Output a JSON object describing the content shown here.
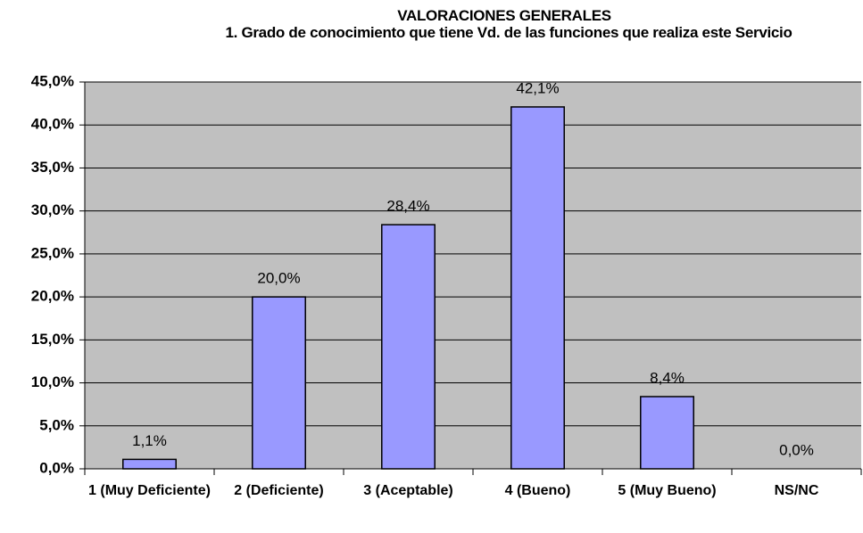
{
  "chart_data": {
    "type": "bar",
    "title": "VALORACIONES GENERALES",
    "subtitle": "1. Grado de conocimiento que tiene Vd. de las funciones que realiza este Servicio",
    "categories": [
      "1 (Muy Deficiente)",
      "2 (Deficiente)",
      "3 (Aceptable)",
      "4 (Bueno)",
      "5 (Muy Bueno)",
      "NS/NC"
    ],
    "values": [
      1.1,
      20.0,
      28.4,
      42.1,
      8.4,
      0.0
    ],
    "value_labels": [
      "1,1%",
      "20,0%",
      "28,4%",
      "42,1%",
      "8,4%",
      "0,0%"
    ],
    "color": "#9999ff",
    "ylim": [
      0,
      45
    ],
    "yticks": [
      {
        "value": 0,
        "label": "0,0%"
      },
      {
        "value": 5,
        "label": "5,0%"
      },
      {
        "value": 10,
        "label": "10,0%"
      },
      {
        "value": 15,
        "label": "15,0%"
      },
      {
        "value": 20,
        "label": "20,0%"
      },
      {
        "value": 25,
        "label": "25,0%"
      },
      {
        "value": 30,
        "label": "30,0%"
      },
      {
        "value": 35,
        "label": "35,0%"
      },
      {
        "value": 40,
        "label": "40,0%"
      },
      {
        "value": 45,
        "label": "45,0%"
      }
    ],
    "grid": true
  }
}
